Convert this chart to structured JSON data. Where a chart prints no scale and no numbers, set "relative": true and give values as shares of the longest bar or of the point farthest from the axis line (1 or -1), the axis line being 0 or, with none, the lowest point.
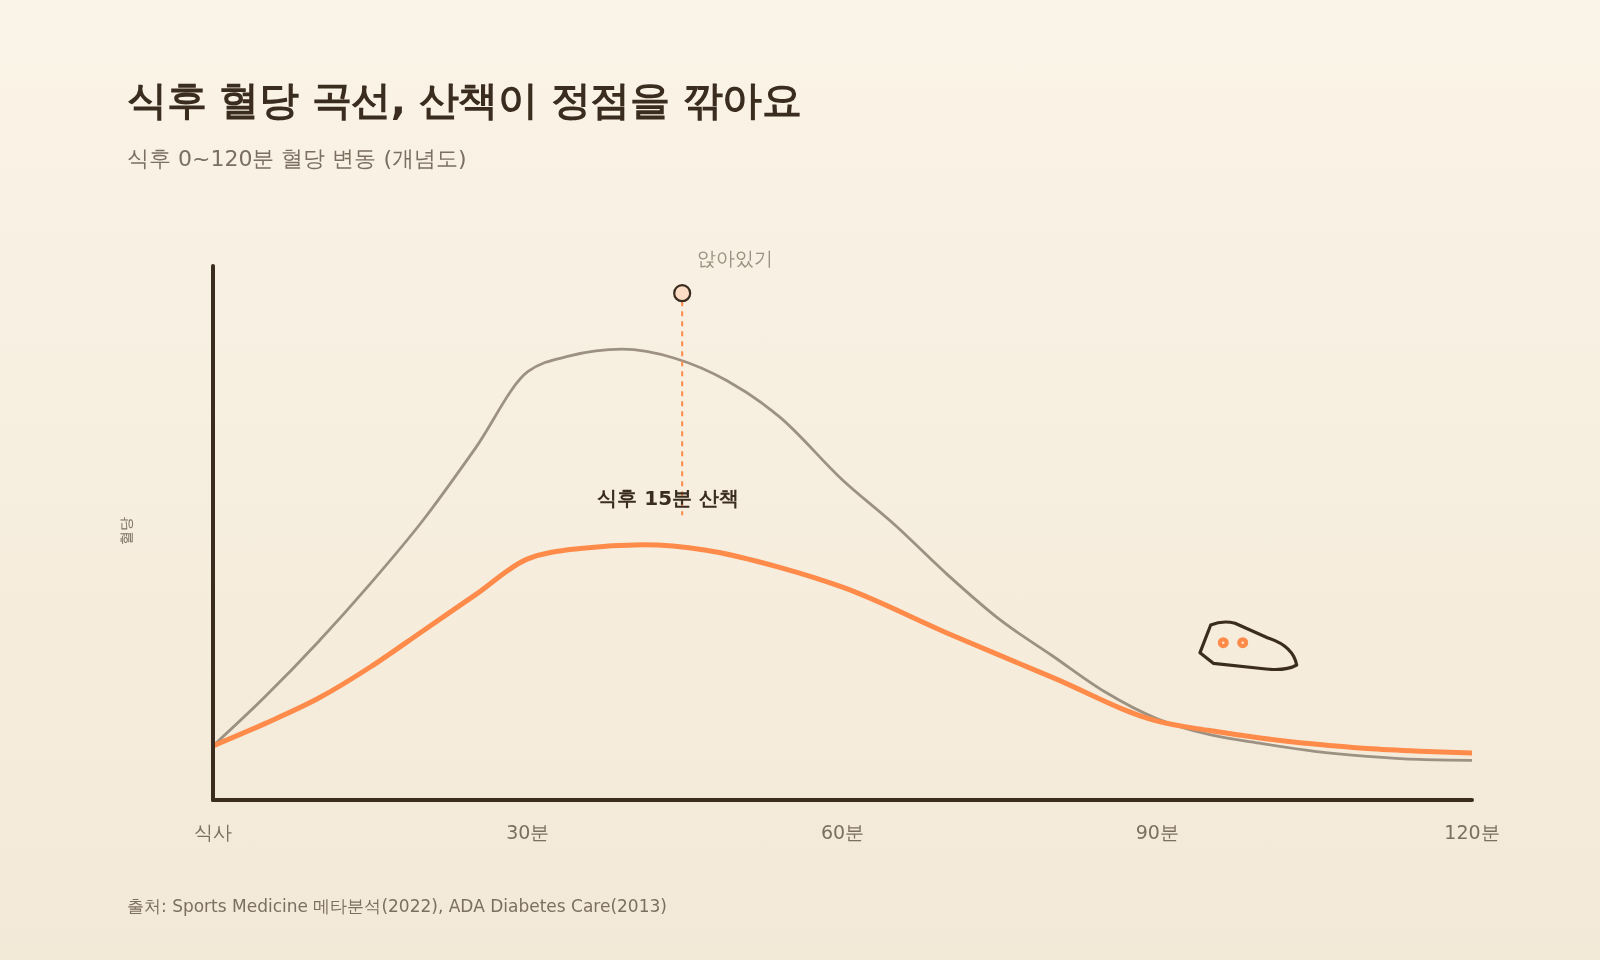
{
  "chart_data": {
    "type": "line",
    "title": "식후 혈당 곡선, 산책이 정점을 깎아요",
    "subtitle": "식후 0~120분 혈당 변동 (개념도)",
    "ylabel": "혈당",
    "relative": true,
    "xlim": [
      0,
      120
    ],
    "xticks": [
      {
        "value": 0,
        "label": "식사"
      },
      {
        "value": 30,
        "label": "30분"
      },
      {
        "value": 60,
        "label": "60분"
      },
      {
        "value": 90,
        "label": "90분"
      },
      {
        "value": 120,
        "label": "120분"
      }
    ],
    "grid": false,
    "legend": false,
    "marker": "none",
    "line_style": "solid",
    "series": [
      {
        "name": "앉아있기",
        "color": "#9c9182",
        "x": [
          0,
          5,
          10,
          15,
          20,
          25,
          30,
          34,
          39,
          44,
          49,
          54,
          60,
          65,
          70,
          75,
          80,
          85,
          90,
          95,
          100,
          105,
          110,
          115,
          120
        ],
        "values": [
          0.12,
          0.23,
          0.35,
          0.48,
          0.62,
          0.78,
          0.95,
          0.985,
          1.0,
          0.98,
          0.93,
          0.85,
          0.71,
          0.61,
          0.5,
          0.4,
          0.32,
          0.24,
          0.18,
          0.145,
          0.125,
          0.108,
          0.097,
          0.09,
          0.088
        ]
      },
      {
        "name": "식후 15분 산책",
        "color": "#ff8b4a",
        "x": [
          0,
          5,
          10,
          15,
          20,
          25,
          30,
          35,
          41,
          47,
          54,
          60,
          70,
          80,
          90,
          95,
          100,
          105,
          110,
          115,
          120
        ],
        "values": [
          0.12,
          0.17,
          0.225,
          0.295,
          0.375,
          0.455,
          0.535,
          0.558,
          0.566,
          0.554,
          0.516,
          0.472,
          0.37,
          0.272,
          0.175,
          0.154,
          0.137,
          0.124,
          0.114,
          0.108,
          0.104
        ]
      }
    ],
    "annotations": [
      "출처: Sports Medicine 메타분석(2022), ADA Diabetes Care(2013)"
    ]
  }
}
